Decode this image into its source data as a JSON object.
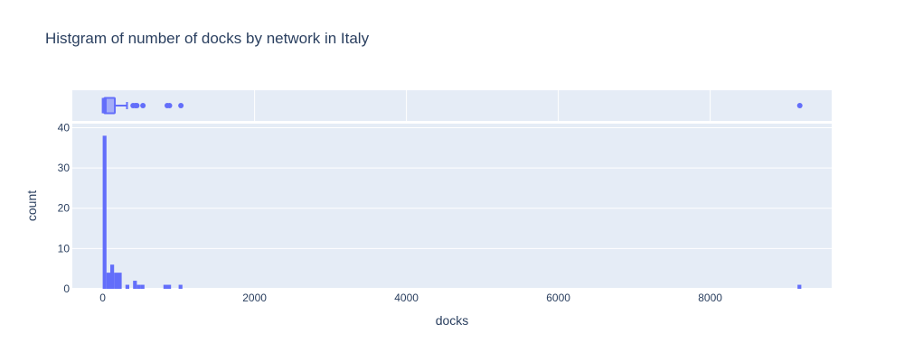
{
  "chart_data": {
    "type": "histogram",
    "title": "Histgram of number of docks by network in Italy",
    "xlabel": "docks",
    "ylabel": "count",
    "xlim": [
      -400,
      9600
    ],
    "ylim": [
      0,
      41
    ],
    "x_ticks": [
      0,
      2000,
      4000,
      6000,
      8000
    ],
    "y_ticks": [
      0,
      10,
      20,
      30,
      40
    ],
    "grid": true,
    "bar_color": "#636efa",
    "plot_bg": "#e5ecf6",
    "bins": [
      {
        "x0": 0,
        "x1": 50,
        "count": 38
      },
      {
        "x0": 50,
        "x1": 100,
        "count": 4
      },
      {
        "x0": 100,
        "x1": 150,
        "count": 6
      },
      {
        "x0": 150,
        "x1": 250,
        "count": 4
      },
      {
        "x0": 300,
        "x1": 350,
        "count": 1
      },
      {
        "x0": 400,
        "x1": 450,
        "count": 2
      },
      {
        "x0": 450,
        "x1": 500,
        "count": 1
      },
      {
        "x0": 500,
        "x1": 550,
        "count": 1
      },
      {
        "x0": 800,
        "x1": 850,
        "count": 1
      },
      {
        "x0": 850,
        "x1": 900,
        "count": 1
      },
      {
        "x0": 1000,
        "x1": 1050,
        "count": 1
      },
      {
        "x0": 9150,
        "x1": 9200,
        "count": 1
      }
    ],
    "marginal_box": {
      "min": 0,
      "q1": 20,
      "median": 40,
      "q3": 160,
      "upper_fence": 320,
      "outliers": [
        400,
        430,
        450,
        530,
        850,
        880,
        1030,
        9180
      ]
    }
  }
}
